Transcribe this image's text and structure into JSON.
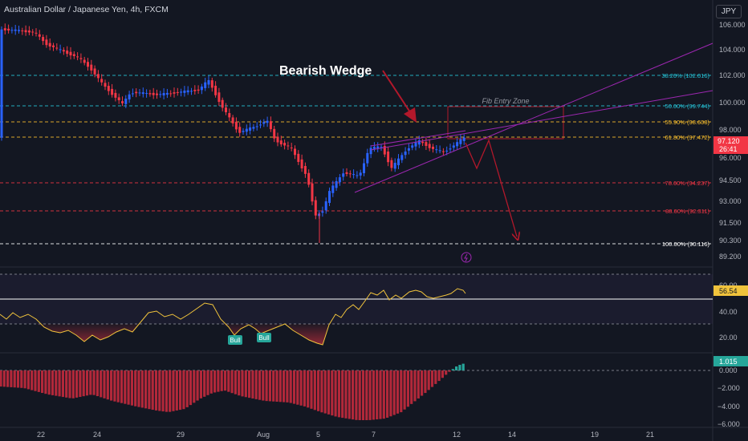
{
  "header": {
    "symbol_title": "Australian Dollar / Japanese Yen, 4h, FXCM",
    "currency_button": "JPY"
  },
  "annotations": {
    "pattern_label": "Bearish Wedge",
    "zone_label": "Fib Entry Zone",
    "bull_label": "Bull"
  },
  "price_axis": {
    "ticks": [
      "106.000",
      "104.000",
      "102.000",
      "100.000",
      "98.000",
      "96.000",
      "94.500",
      "93.000",
      "91.500",
      "90.300",
      "89.200"
    ],
    "current_price": "97.120",
    "countdown": "26:41"
  },
  "fib_levels": [
    {
      "label": "38.20% (102.016)",
      "color": "#26c6da"
    },
    {
      "label": "50.00% (99.744)",
      "color": "#26c6da"
    },
    {
      "label": "55.90% (98.608)",
      "color": "#fbc02d"
    },
    {
      "label": "61.80% (97.472)",
      "color": "#fbc02d"
    },
    {
      "label": "78.60% (94.237)",
      "color": "#f23645"
    },
    {
      "label": "88.60% (92.311)",
      "color": "#f23645"
    },
    {
      "label": "100.00% (90.116)",
      "color": "#ffffff"
    }
  ],
  "rsi_panel": {
    "ticks": [
      "60.00",
      "40.00",
      "20.00"
    ],
    "current_value": "56.54"
  },
  "macd_panel": {
    "ticks": [
      "0.000",
      "−2.000",
      "−4.000",
      "−6.000"
    ],
    "current_value": "1.015"
  },
  "time_axis": [
    "22",
    "24",
    "29",
    "Aug",
    "5",
    "7",
    "12",
    "14",
    "19",
    "21"
  ],
  "colors": {
    "background": "#131722",
    "up": "#2962ff",
    "down": "#f23645",
    "rsi": "#f0c33c",
    "wedge": "#9c27b0",
    "arrow": "#b2182b",
    "bull_badge": "#26a69a",
    "macd_pos": "#26a69a",
    "macd_neg": "#b2283a"
  }
}
